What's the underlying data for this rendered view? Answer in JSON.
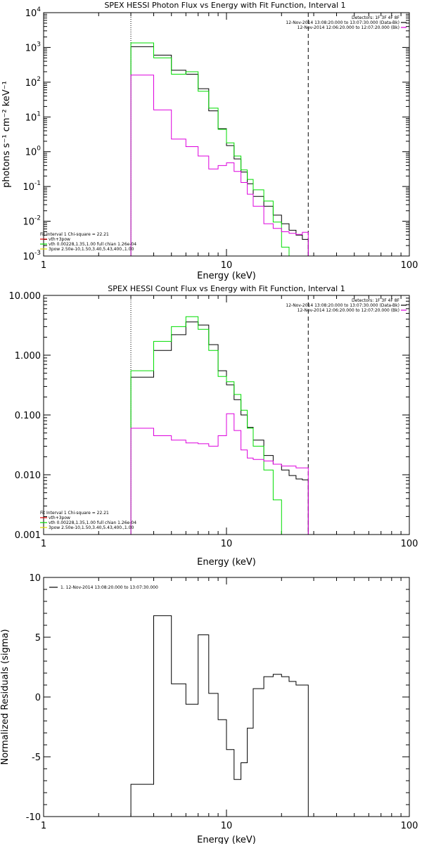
{
  "chart_data": [
    {
      "type": "line",
      "title": "SPEX HESSI Photon Flux vs Energy with Fit Function, Interval 1",
      "xlabel": "Energy (keV)",
      "ylabel": "photons s⁻¹ cm⁻² keV⁻¹",
      "xscale": "log",
      "yscale": "log",
      "xlim": [
        1,
        100
      ],
      "ylim": [
        0.001,
        10000
      ],
      "xticks": [
        {
          "v": 1,
          "label": "1"
        },
        {
          "v": 10,
          "label": "10"
        },
        {
          "v": 100,
          "label": "100"
        }
      ],
      "yticks": [
        {
          "v": 0.001,
          "base": "10",
          "exp": "-3"
        },
        {
          "v": 0.01,
          "base": "10",
          "exp": "-2"
        },
        {
          "v": 0.1,
          "base": "10",
          "exp": "-1"
        },
        {
          "v": 1,
          "base": "10",
          "exp": "0"
        },
        {
          "v": 10,
          "base": "10",
          "exp": "1"
        },
        {
          "v": 100,
          "base": "10",
          "exp": "2"
        },
        {
          "v": 1000,
          "base": "10",
          "exp": "3"
        },
        {
          "v": 10000,
          "base": "10",
          "exp": "4"
        }
      ],
      "vlines": [
        {
          "x": 3,
          "style": "dotted"
        },
        {
          "x": 28,
          "style": "dashed"
        }
      ],
      "bin_edges": [
        3,
        4,
        5,
        6,
        7,
        8,
        9,
        10,
        11,
        12,
        13,
        14,
        16,
        18,
        20,
        22,
        24,
        26,
        28
      ],
      "series": [
        {
          "name": "",
          "color": "#000000",
          "values": [
            1050,
            600,
            220,
            170,
            65,
            15,
            4.6,
            1.5,
            0.62,
            0.26,
            0.12,
            0.052,
            0.027,
            0.015,
            0.0085,
            0.0055,
            0.004,
            0.003
          ]
        },
        {
          "name": "",
          "color": "#00dd00",
          "values": [
            1350,
            500,
            170,
            200,
            55,
            18,
            4.4,
            1.8,
            0.75,
            0.3,
            0.16,
            0.08,
            0.038,
            0.0095,
            0.0018,
            0.001,
            0.001,
            0.001
          ]
        },
        {
          "name": "",
          "color": "#dd00dd",
          "values": [
            160,
            16,
            2.3,
            1.4,
            0.75,
            0.32,
            0.4,
            0.48,
            0.27,
            0.13,
            0.06,
            0.027,
            0.0085,
            0.0062,
            0.005,
            0.0045,
            0.0042,
            0.0048
          ]
        }
      ],
      "legend_topright": [
        {
          "text": "Detectors: 1F 3F 4F 8F",
          "color": ""
        },
        {
          "text": "12-Nov-2014 13:08:20.000 to 13:07:30.000 (Data-Bk)",
          "color": "#000000"
        },
        {
          "text": "12-Nov-2014 12:06:20.000 to 12:07:20.000 (Bk)",
          "color": "#dd00dd"
        }
      ],
      "legend_bottomleft": [
        {
          "text": "Fit Interval 1    Chi-square = 22.21",
          "color": ""
        },
        {
          "text": "vth+3pow",
          "color": "#dd0000"
        },
        {
          "text": "vth 0.00228,1.35,1.00  full chian 1.26e-04",
          "color": "#00dd00"
        },
        {
          "text": "3pow 2.50e-10,1.50,3.40,5.43,400.,1.00",
          "color": "#dddd00"
        }
      ]
    },
    {
      "type": "line",
      "title": "SPEX HESSI Count Flux vs Energy with Fit Function, Interval 1",
      "xlabel": "Energy (keV)",
      "ylabel": "",
      "xscale": "log",
      "yscale": "log",
      "xlim": [
        1,
        100
      ],
      "ylim": [
        0.001,
        10
      ],
      "xticks": [
        {
          "v": 1,
          "label": "1"
        },
        {
          "v": 10,
          "label": "10"
        },
        {
          "v": 100,
          "label": "100"
        }
      ],
      "yticks": [
        {
          "v": 0.001,
          "label": "0.001"
        },
        {
          "v": 0.01,
          "label": "0.010"
        },
        {
          "v": 0.1,
          "label": "0.100"
        },
        {
          "v": 1,
          "label": "1.000"
        },
        {
          "v": 10,
          "label": "10.000"
        }
      ],
      "vlines": [
        {
          "x": 3,
          "style": "dotted"
        },
        {
          "x": 28,
          "style": "dashed"
        }
      ],
      "bin_edges": [
        3,
        4,
        5,
        6,
        7,
        8,
        9,
        10,
        11,
        12,
        13,
        14,
        16,
        18,
        20,
        22,
        24,
        26,
        28
      ],
      "series": [
        {
          "name": "",
          "color": "#000000",
          "values": [
            0.43,
            1.2,
            2.2,
            3.6,
            3.2,
            1.5,
            0.55,
            0.32,
            0.18,
            0.1,
            0.062,
            0.038,
            0.021,
            0.015,
            0.012,
            0.0097,
            0.0085,
            0.0082
          ]
        },
        {
          "name": "",
          "color": "#00dd00",
          "values": [
            0.55,
            1.7,
            3.0,
            4.4,
            2.7,
            1.2,
            0.44,
            0.36,
            0.22,
            0.12,
            0.06,
            0.03,
            0.012,
            0.0038,
            0.001,
            0.001,
            0.001,
            0.001
          ]
        },
        {
          "name": "",
          "color": "#dd00dd",
          "values": [
            0.06,
            0.045,
            0.038,
            0.034,
            0.033,
            0.03,
            0.045,
            0.105,
            0.055,
            0.026,
            0.019,
            0.018,
            0.017,
            0.015,
            0.014,
            0.014,
            0.013,
            0.013
          ]
        }
      ],
      "legend_topright": [
        {
          "text": "Detectors: 1F 3F 4F 8F",
          "color": ""
        },
        {
          "text": "12-Nov-2014 13:08:20.000 to 13:07:30.000 (Data-Bk)",
          "color": "#000000"
        },
        {
          "text": "12-Nov-2014 12:06:20.000 to 12:07:20.000 (Bk)",
          "color": "#dd00dd"
        }
      ],
      "legend_bottomleft": [
        {
          "text": "Fit Interval 1    Chi-square = 22.21",
          "color": ""
        },
        {
          "text": "vth+3pow",
          "color": "#dd0000"
        },
        {
          "text": "vth 0.00228,1.35,1.00  full chian 1.26e-04",
          "color": "#00dd00"
        },
        {
          "text": "3pow 2.50e-10,1.50,3.40,5.43,400.,1.00",
          "color": "#dddd00"
        }
      ]
    },
    {
      "type": "line",
      "title": "",
      "xlabel": "Energy (keV)",
      "ylabel": "Normalized Residuals (sigma)",
      "xscale": "log",
      "yscale": "linear",
      "xlim": [
        1,
        100
      ],
      "ylim": [
        -10,
        10
      ],
      "xticks": [
        {
          "v": 1,
          "label": "1"
        },
        {
          "v": 10,
          "label": "10"
        },
        {
          "v": 100,
          "label": "100"
        }
      ],
      "yticks": [
        {
          "v": -10,
          "label": "-10"
        },
        {
          "v": -5,
          "label": "-5"
        },
        {
          "v": 0,
          "label": "0"
        },
        {
          "v": 5,
          "label": "5"
        },
        {
          "v": 10,
          "label": "10"
        }
      ],
      "vlines": [],
      "bin_edges": [
        3,
        4,
        5,
        6,
        7,
        8,
        9,
        10,
        11,
        12,
        13,
        14,
        16,
        18,
        20,
        22,
        24,
        26,
        28
      ],
      "series": [
        {
          "name": "1. 12-Nov-2014 13:08:20.000 to 13:07:30.000",
          "color": "#000000",
          "values": [
            -7.3,
            6.8,
            1.1,
            -0.6,
            5.2,
            0.3,
            -1.9,
            -4.4,
            -6.9,
            -5.5,
            -2.6,
            0.7,
            1.7,
            1.9,
            1.7,
            1.3,
            1.0,
            1.0
          ]
        }
      ],
      "legend_topright": [],
      "legend_bottomleft": []
    }
  ]
}
